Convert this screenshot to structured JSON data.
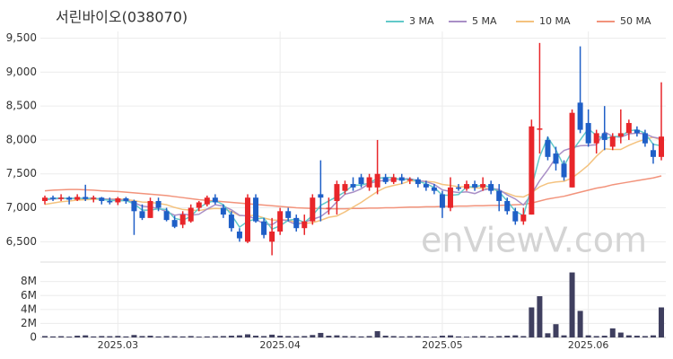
{
  "chart_data": {
    "type": "candlestick",
    "title": "서린바이오(038070)",
    "watermark": "enViewV.com",
    "categories": [
      null,
      null,
      null,
      null,
      null,
      null,
      null,
      null,
      null,
      "2025.03",
      null,
      null,
      null,
      null,
      null,
      null,
      null,
      null,
      null,
      null,
      null,
      null,
      null,
      null,
      null,
      null,
      null,
      null,
      null,
      "2025.04",
      null,
      null,
      null,
      null,
      null,
      null,
      null,
      null,
      null,
      null,
      null,
      null,
      null,
      null,
      null,
      null,
      null,
      null,
      null,
      "2025.05",
      null,
      null,
      null,
      null,
      null,
      null,
      null,
      null,
      null,
      null,
      null,
      null,
      null,
      null,
      null,
      null,
      null,
      "2025.06",
      null,
      null,
      null,
      null,
      null,
      null,
      null,
      null,
      null
    ],
    "open": [
      7100,
      7150,
      7130,
      7150,
      7120,
      7160,
      7130,
      7150,
      7100,
      7080,
      7140,
      7100,
      6950,
      6850,
      7100,
      6950,
      6820,
      6750,
      6800,
      7000,
      7050,
      7150,
      7000,
      6900,
      6650,
      6500,
      7150,
      6800,
      6500,
      6650,
      6950,
      6850,
      6700,
      6800,
      7200,
      7000,
      7100,
      7250,
      7350,
      7450,
      7300,
      7300,
      7450,
      7380,
      7450,
      7400,
      7420,
      7350,
      7300,
      7200,
      7000,
      7300,
      7280,
      7350,
      7300,
      7350,
      7250,
      7100,
      6950,
      6800,
      6900,
      8150,
      8000,
      7800,
      7650,
      7300,
      8550,
      8250,
      7950,
      8100,
      7900,
      8050,
      8100,
      8150,
      8100,
      7850,
      7750
    ],
    "high": [
      7180,
      7180,
      7200,
      7170,
      7200,
      7340,
      7180,
      7160,
      7150,
      7160,
      7160,
      7120,
      7050,
      7150,
      7150,
      7000,
      6880,
      6950,
      7050,
      7100,
      7180,
      7200,
      7050,
      6950,
      6700,
      7200,
      7200,
      6850,
      6850,
      7000,
      7000,
      6900,
      6900,
      7200,
      7700,
      7150,
      7400,
      7400,
      7450,
      7500,
      7500,
      8000,
      7500,
      7500,
      7500,
      7450,
      7450,
      7400,
      7350,
      7250,
      7450,
      7350,
      7400,
      7400,
      7450,
      7400,
      7350,
      7150,
      7000,
      7000,
      8300,
      9430,
      8050,
      7900,
      7700,
      8450,
      9380,
      8450,
      8150,
      8500,
      8100,
      8450,
      8300,
      8200,
      8150,
      7950,
      8850
    ],
    "low": [
      7050,
      7100,
      7100,
      7050,
      7100,
      7100,
      7080,
      7050,
      7050,
      7040,
      7060,
      6600,
      6820,
      6850,
      6950,
      6800,
      6700,
      6700,
      6780,
      6950,
      7020,
      7050,
      6850,
      6650,
      6500,
      6480,
      6780,
      6550,
      6300,
      6600,
      6800,
      6650,
      6600,
      6750,
      6800,
      6900,
      6900,
      7200,
      7250,
      7300,
      7250,
      7200,
      7350,
      7350,
      7350,
      7350,
      7300,
      7250,
      7200,
      6850,
      6950,
      7250,
      7250,
      7250,
      7250,
      7200,
      6950,
      6900,
      6750,
      6750,
      6900,
      7800,
      7700,
      7550,
      7400,
      7300,
      8100,
      7900,
      7800,
      7850,
      7850,
      7950,
      8000,
      8050,
      7900,
      7650,
      7700
    ],
    "close": [
      7150,
      7130,
      7150,
      7120,
      7160,
      7130,
      7150,
      7100,
      7080,
      7140,
      7100,
      6950,
      6850,
      7100,
      7000,
      6820,
      6720,
      6900,
      7000,
      7080,
      7150,
      7080,
      6900,
      6700,
      6550,
      7150,
      6800,
      6600,
      6650,
      6950,
      6850,
      6700,
      6800,
      7150,
      7150,
      7000,
      7350,
      7350,
      7300,
      7350,
      7450,
      7500,
      7380,
      7450,
      7400,
      7420,
      7350,
      7300,
      7250,
      7000,
      7300,
      7280,
      7350,
      7300,
      7350,
      7250,
      7100,
      6950,
      6800,
      6900,
      8200,
      8170,
      7750,
      7650,
      7450,
      8400,
      8150,
      7950,
      8100,
      8000,
      8050,
      8100,
      8250,
      8100,
      7950,
      7750,
      8050
    ],
    "up_color": "#e8262a",
    "down_color": "#1f5fc7",
    "ylim": [
      6200,
      9600
    ],
    "yticks": [
      {
        "value": 6500,
        "label": "6,500"
      },
      {
        "value": 7000,
        "label": "7,000"
      },
      {
        "value": 7500,
        "label": "7,500"
      },
      {
        "value": 8000,
        "label": "8,000"
      },
      {
        "value": 8500,
        "label": "8,500"
      },
      {
        "value": 9000,
        "label": "9,000"
      },
      {
        "value": 9500,
        "label": "9,500"
      }
    ],
    "grid": true,
    "series": [
      {
        "name": "3 MA",
        "color": "#62c9c9",
        "values": [
          7130,
          7140,
          7145,
          7135,
          7145,
          7135,
          7145,
          7125,
          7110,
          7105,
          7105,
          7060,
          6965,
          6965,
          6985,
          6975,
          6845,
          6815,
          6875,
          6995,
          7075,
          7105,
          7045,
          6895,
          6715,
          6800,
          6835,
          6850,
          6685,
          6735,
          6815,
          6835,
          6785,
          6885,
          7035,
          7100,
          7165,
          7235,
          7335,
          7335,
          7365,
          7435,
          7445,
          7445,
          7410,
          7425,
          7390,
          7355,
          7300,
          7185,
          7185,
          7195,
          7310,
          7310,
          7335,
          7300,
          7235,
          7100,
          6950,
          6885,
          7300,
          7755,
          8040,
          7855,
          7615,
          7835,
          8000,
          8165,
          8065,
          8015,
          8050,
          8050,
          8135,
          8150,
          8100,
          7935,
          7915
        ]
      },
      {
        "name": "5 MA",
        "color": "#a98fc6",
        "values": [
          7120,
          7130,
          7140,
          7140,
          7140,
          7140,
          7140,
          7130,
          7125,
          7120,
          7110,
          7075,
          7025,
          7010,
          6990,
          6945,
          6890,
          6910,
          6890,
          6905,
          6980,
          7045,
          7025,
          6970,
          6890,
          6880,
          6835,
          6760,
          6750,
          6830,
          6805,
          6750,
          6790,
          6830,
          6870,
          6960,
          7090,
          7200,
          7230,
          7280,
          7360,
          7390,
          7405,
          7415,
          7425,
          7430,
          7400,
          7385,
          7345,
          7265,
          7240,
          7225,
          7235,
          7210,
          7260,
          7285,
          7270,
          7190,
          7130,
          7040,
          7200,
          7400,
          7560,
          7740,
          7845,
          7885,
          7915,
          7920,
          7930,
          8120,
          8050,
          8040,
          8090,
          8100,
          8090,
          8040,
          8020
        ]
      },
      {
        "name": "10 MA",
        "color": "#f4c27e",
        "values": [
          7050,
          7070,
          7090,
          7100,
          7115,
          7120,
          7125,
          7130,
          7130,
          7130,
          7125,
          7105,
          7085,
          7080,
          7065,
          7045,
          7005,
          6975,
          6965,
          6960,
          6980,
          6990,
          6985,
          6945,
          6885,
          6885,
          6890,
          6850,
          6820,
          6815,
          6825,
          6780,
          6770,
          6780,
          6815,
          6860,
          6880,
          6940,
          7010,
          7080,
          7160,
          7240,
          7300,
          7330,
          7355,
          7395,
          7395,
          7390,
          7380,
          7345,
          7330,
          7310,
          7310,
          7295,
          7290,
          7275,
          7250,
          7215,
          7170,
          7160,
          7220,
          7310,
          7360,
          7380,
          7390,
          7440,
          7530,
          7630,
          7760,
          7870,
          7860,
          7860,
          7920,
          7970,
          8010,
          8040,
          8000
        ]
      },
      {
        "name": "50 MA",
        "color": "#f2937b",
        "values": [
          7250,
          7260,
          7265,
          7270,
          7270,
          7265,
          7260,
          7250,
          7245,
          7240,
          7230,
          7220,
          7210,
          7200,
          7190,
          7180,
          7165,
          7150,
          7135,
          7120,
          7110,
          7100,
          7090,
          7080,
          7070,
          7060,
          7050,
          7040,
          7030,
          7020,
          7010,
          7000,
          6995,
          6990,
          6990,
          6985,
          6985,
          6985,
          6990,
          6990,
          6995,
          6995,
          7000,
          7000,
          7005,
          7010,
          7010,
          7015,
          7015,
          7020,
          7020,
          7025,
          7025,
          7030,
          7030,
          7035,
          7035,
          7040,
          7045,
          7050,
          7070,
          7100,
          7130,
          7150,
          7170,
          7200,
          7230,
          7260,
          7290,
          7310,
          7340,
          7360,
          7380,
          7400,
          7420,
          7440,
          7470
        ]
      }
    ],
    "volume": {
      "color": "#3f3f5f",
      "values": [
        200000,
        150000,
        180000,
        120000,
        250000,
        300000,
        150000,
        200000,
        180000,
        220000,
        150000,
        350000,
        200000,
        250000,
        150000,
        200000,
        180000,
        150000,
        200000,
        120000,
        150000,
        180000,
        200000,
        250000,
        300000,
        450000,
        250000,
        200000,
        400000,
        250000,
        200000,
        180000,
        200000,
        350000,
        650000,
        250000,
        300000,
        200000,
        180000,
        150000,
        200000,
        900000,
        250000,
        200000,
        150000,
        180000,
        200000,
        150000,
        120000,
        250000,
        300000,
        150000,
        120000,
        180000,
        200000,
        150000,
        200000,
        250000,
        300000,
        200000,
        4300000,
        5900000,
        600000,
        1900000,
        300000,
        9300000,
        3800000,
        300000,
        200000,
        250000,
        1300000,
        700000,
        300000,
        250000,
        200000,
        300000,
        4300000
      ],
      "ylim": [
        0,
        9500000
      ],
      "yticks": [
        0,
        {
          "value": 2000000,
          "label": "2M"
        },
        {
          "value": 4000000,
          "label": "4M"
        },
        {
          "value": 6000000,
          "label": "6M"
        },
        {
          "value": 8000000,
          "label": "8M"
        }
      ]
    }
  }
}
